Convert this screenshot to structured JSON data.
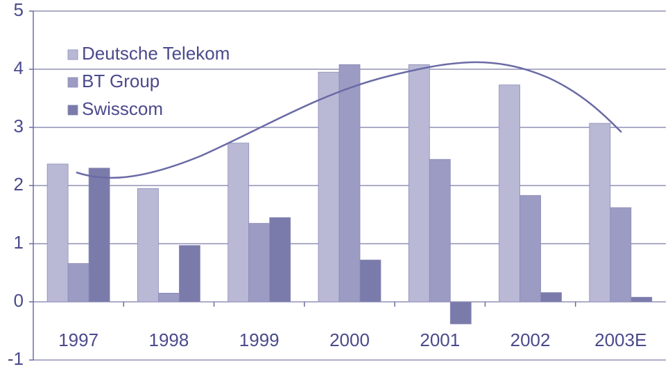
{
  "chart_data": {
    "type": "bar",
    "categories": [
      "1997",
      "1998",
      "1999",
      "2000",
      "2001",
      "2002",
      "2003E"
    ],
    "series": [
      {
        "name": "Deutsche Telekom",
        "color": "#b9b9d5",
        "values": [
          2.37,
          1.95,
          2.73,
          3.95,
          4.08,
          3.73,
          3.07
        ]
      },
      {
        "name": "BT Group",
        "color": "#9b9bc3",
        "values": [
          0.66,
          0.15,
          1.35,
          4.08,
          2.45,
          1.83,
          1.62
        ]
      },
      {
        "name": "Swisscom",
        "color": "#7b7bab",
        "values": [
          2.3,
          0.97,
          1.45,
          0.72,
          -0.38,
          0.16,
          0.08
        ]
      }
    ],
    "ylim": [
      -1,
      5
    ],
    "yticks": [
      -1,
      0,
      1,
      2,
      3,
      4,
      5
    ],
    "grid": true,
    "legend": "top-left"
  }
}
